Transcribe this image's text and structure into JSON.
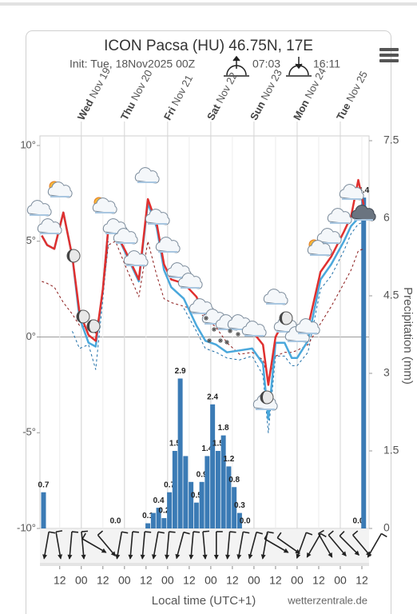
{
  "chart_data": {
    "type": "line",
    "title": "ICON Pacsa (HU) 46.75N, 17E",
    "subtitle": "Init: Tue, 18Nov2025 00Z",
    "sunrise": "07:03",
    "sunset": "16:11",
    "xlabel": "Local time (UTC+1)",
    "y2label": "Precipitation (mm)",
    "credit": "wetterzentrale.de",
    "xlim": [
      1,
      184
    ],
    "xticks": [
      {
        "value": 12,
        "label": "12"
      },
      {
        "value": 24,
        "label": "00"
      },
      {
        "value": 36,
        "label": "12"
      },
      {
        "value": 48,
        "label": "00"
      },
      {
        "value": 60,
        "label": "12"
      },
      {
        "value": 72,
        "label": "00"
      },
      {
        "value": 84,
        "label": "12"
      },
      {
        "value": 96,
        "label": "00"
      },
      {
        "value": 108,
        "label": "12"
      },
      {
        "value": 120,
        "label": "00"
      },
      {
        "value": 132,
        "label": "12"
      },
      {
        "value": 144,
        "label": "00"
      },
      {
        "value": 156,
        "label": "12"
      },
      {
        "value": 168,
        "label": "00"
      },
      {
        "value": 180,
        "label": "12"
      }
    ],
    "day_ticks": [
      {
        "value": 24,
        "day": "Wed",
        "date": "Nov 19"
      },
      {
        "value": 48,
        "day": "Thu",
        "date": "Nov 20"
      },
      {
        "value": 72,
        "day": "Fri",
        "date": "Nov 21"
      },
      {
        "value": 96,
        "day": "Sat",
        "date": "Nov 22"
      },
      {
        "value": 120,
        "day": "Sun",
        "date": "Nov 23"
      },
      {
        "value": 144,
        "day": "Mon",
        "date": "Nov 24"
      },
      {
        "value": 168,
        "day": "Tue",
        "date": "Nov 25"
      }
    ],
    "ylim": [
      -10,
      10
    ],
    "yticks": [
      {
        "value": 10,
        "label": "10°"
      },
      {
        "value": 5,
        "label": "5°"
      },
      {
        "value": 0,
        "label": "0°"
      },
      {
        "value": -5,
        "label": "-5°"
      },
      {
        "value": -10,
        "label": "-10°"
      }
    ],
    "y2lim": [
      0,
      7.5
    ],
    "y2ticks": [
      0,
      1.5,
      3,
      4.5,
      6,
      7.5
    ],
    "x": [
      2,
      5,
      9,
      14,
      19,
      23,
      28,
      32,
      36,
      39,
      43,
      49,
      56,
      61,
      66,
      70,
      74,
      81,
      88,
      93,
      99,
      105,
      112,
      119,
      125,
      128,
      132,
      137,
      141,
      144,
      150,
      157,
      163,
      170,
      174,
      178,
      181
    ],
    "series": [
      {
        "color": "#1f6fa8",
        "dashed": true,
        "width": 1,
        "values": [
          null,
          null,
          null,
          null,
          0.3,
          -0.6,
          -0.4,
          -1.7,
          2.0,
          5.0,
          null,
          null,
          null,
          null,
          null,
          null,
          null,
          1.5,
          0.3,
          -0.6,
          -0.8,
          -1.1,
          -1.2,
          -1.0,
          -2.0,
          -5.0,
          -1.0,
          -1.0,
          -1.5,
          -1.5,
          -0.8,
          2.5,
          3.2,
          4.5,
          5.4,
          5.9,
          6.0
        ]
      },
      {
        "color": "#8b1a1a",
        "dashed": true,
        "width": 1,
        "values": [
          2.9,
          2.8,
          2.6,
          1.8,
          1.2,
          0.6,
          0.5,
          0.2,
          2.3,
          4.8,
          5.0,
          3.6,
          2.1,
          5.0,
          3.2,
          2.0,
          1.8,
          1.6,
          1.4,
          1.0,
          0.5,
          -0.3,
          -0.9,
          -0.8,
          -1.2,
          -2.2,
          -1.0,
          -0.8,
          -0.8,
          -0.7,
          -0.4,
          0.7,
          1.6,
          2.8,
          3.5,
          4.5,
          4.6
        ]
      },
      {
        "color": "#4aa8dc",
        "dashed": false,
        "width": 2.5,
        "values": [
          5.3,
          4.8,
          4.6,
          6.5,
          4.2,
          1.0,
          -0.3,
          -0.5,
          2.5,
          5.7,
          5.5,
          4.3,
          2.9,
          7.0,
          5.7,
          3.5,
          2.6,
          2.0,
          0.6,
          -0.2,
          -0.4,
          -0.8,
          -0.7,
          -0.6,
          -1.4,
          -4.3,
          -0.3,
          -0.3,
          -1.1,
          -1.1,
          -0.2,
          3.0,
          3.8,
          5.0,
          5.8,
          6.2,
          6.2
        ]
      },
      {
        "color": "#e0302f",
        "dashed": false,
        "width": 2.5,
        "values": [
          5.3,
          4.8,
          4.6,
          6.5,
          4.2,
          1.3,
          0.1,
          -0.2,
          2.5,
          5.7,
          5.5,
          4.4,
          3.0,
          7.2,
          5.9,
          3.8,
          3.0,
          2.8,
          2.1,
          1.1,
          0.7,
          0.5,
          0.5,
          0.3,
          -0.4,
          -2.5,
          0.0,
          0.9,
          0.7,
          0.5,
          0.5,
          3.4,
          4.2,
          5.5,
          6.3,
          8.2,
          6.9
        ]
      }
    ],
    "precipitation": {
      "type": "bar",
      "axis": "y2",
      "color": "#3b7bb5",
      "x": [
        3,
        43,
        61,
        64,
        67,
        70,
        73,
        76,
        79,
        82,
        85,
        88,
        91,
        94,
        97,
        100,
        103,
        106,
        109,
        112,
        115,
        178,
        181
      ],
      "values": [
        0.7,
        0.0,
        0.1,
        0.3,
        0.4,
        0.2,
        0.7,
        1.5,
        2.9,
        1.4,
        0.9,
        0.5,
        0.9,
        1.4,
        2.4,
        1.5,
        1.8,
        1.2,
        0.8,
        0.3,
        0.0,
        0.0,
        6.4
      ],
      "value_labels": [
        "0.7",
        "0.0",
        "0.1",
        null,
        "0.4",
        "0.2",
        "0.7",
        "1.5",
        "2.9",
        null,
        null,
        "0.5",
        "0.9",
        "1.4",
        "2.4",
        "1.5",
        "1.8",
        "1.2",
        "0.8",
        "0.3",
        "0.0",
        "0.0",
        "6.4"
      ]
    }
  }
}
